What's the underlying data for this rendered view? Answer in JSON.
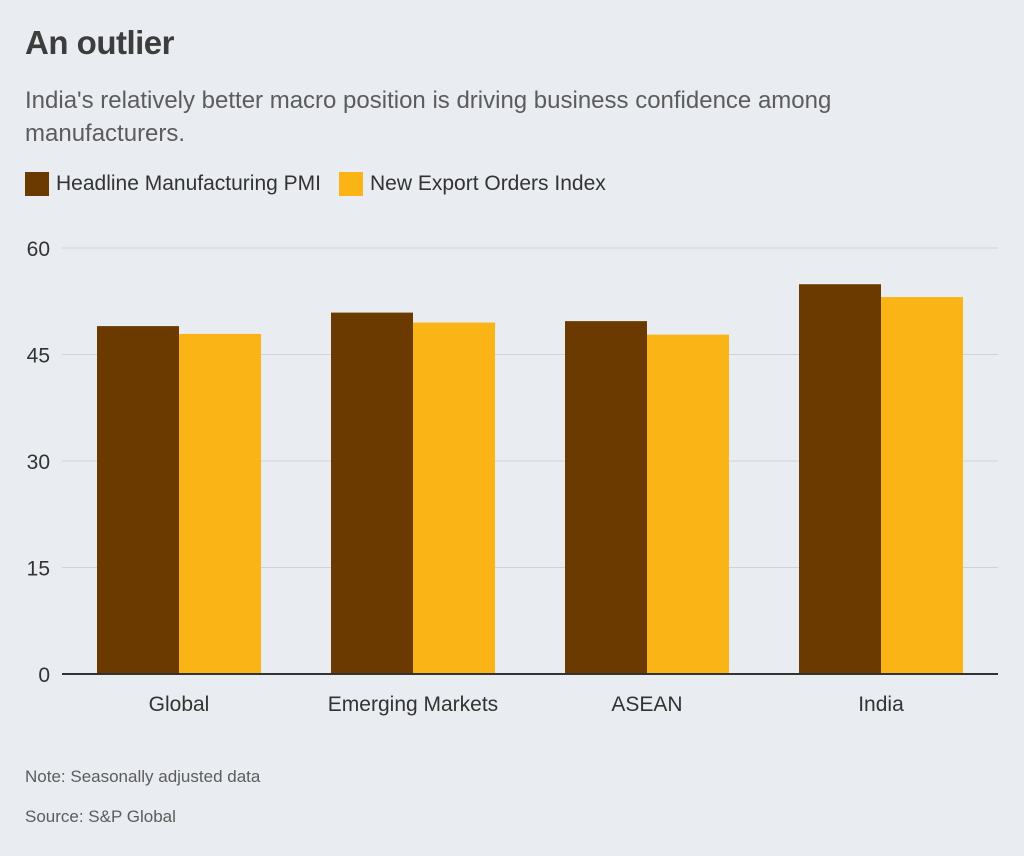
{
  "header": {
    "title": "An outlier",
    "subtitle": "India's relatively better macro position is driving business confidence among manufacturers."
  },
  "footer": {
    "note": "Note: Seasonally adjusted data",
    "source": "Source: S&P Global"
  },
  "colors": {
    "series1": "#6b3a00",
    "series2": "#fbb416",
    "grid": "#cfd3d8",
    "axis": "#333333"
  },
  "chart_data": {
    "type": "bar",
    "categories": [
      "Global",
      "Emerging Markets",
      "ASEAN",
      "India"
    ],
    "series": [
      {
        "name": "Headline Manufacturing PMI",
        "values": [
          49.0,
          50.9,
          49.7,
          54.9
        ]
      },
      {
        "name": "New Export Orders Index",
        "values": [
          47.9,
          49.5,
          47.8,
          53.1
        ]
      }
    ],
    "yticks": [
      0,
      15,
      30,
      45,
      60
    ],
    "ylim": [
      0,
      60
    ],
    "grid": true,
    "legend": "top-left"
  }
}
